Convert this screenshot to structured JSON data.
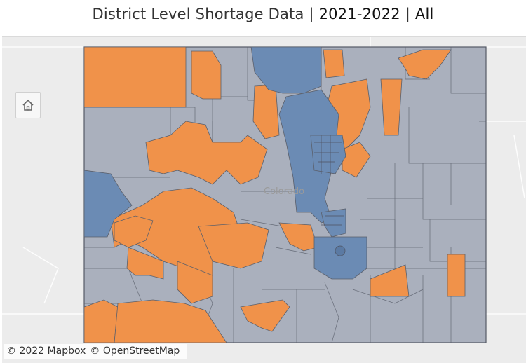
{
  "title": {
    "prefix": "District Level Shortage Data",
    "sep1": " | ",
    "year": "2021-2022",
    "sep2": " | ",
    "filter": "All"
  },
  "map": {
    "state_label": "Colorado",
    "attribution_mapbox": "© 2022 Mapbox",
    "attribution_osm": "© OpenStreetMap",
    "colors": {
      "background": "#ececec",
      "state_fill": "#aab0bd",
      "shortage_orange": "#f0924a",
      "shortage_blue": "#6b8bb4",
      "border": "#555a66"
    },
    "legend_categories": [
      "orange",
      "blue",
      "gray"
    ]
  },
  "controls": {
    "home_icon": "home-icon"
  }
}
